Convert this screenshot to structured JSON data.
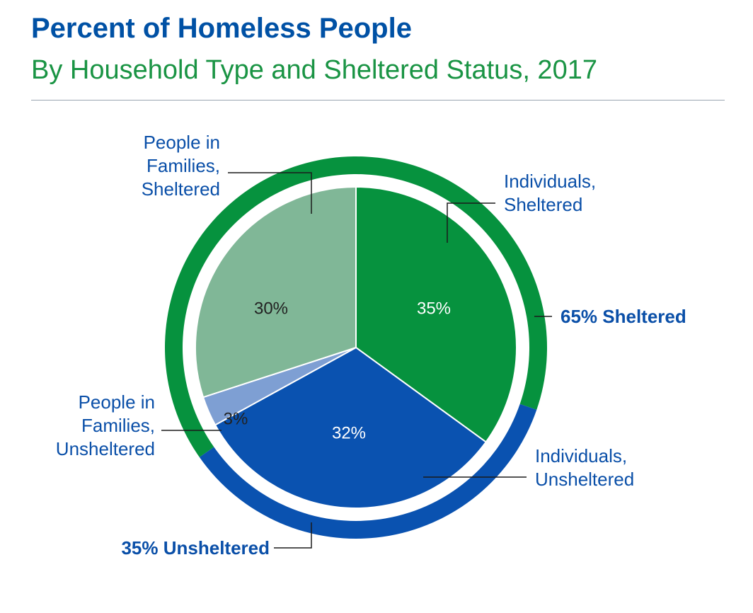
{
  "title": "Percent of Homeless People",
  "subtitle": "By Household Type and Sheltered Status, 2017",
  "colors": {
    "title": "#0051a5",
    "subtitle": "#1a9444",
    "sheltered_ring": "#06923e",
    "unsheltered_ring": "#0a52b0",
    "label_text": "#0a4fa8"
  },
  "chart_data": {
    "type": "pie",
    "title": "Percent of Homeless People",
    "subtitle": "By Household Type and Sheltered Status, 2017",
    "slices": [
      {
        "label": "Individuals, Sheltered",
        "label_lines": [
          "Individuals,",
          "Sheltered"
        ],
        "value": 35,
        "display": "35%",
        "color": "#06923e",
        "text_color": "#ffffff"
      },
      {
        "label": "Individuals, Unsheltered",
        "label_lines": [
          "Individuals,",
          "Unsheltered"
        ],
        "value": 32,
        "display": "32%",
        "color": "#0a52b0",
        "text_color": "#ffffff"
      },
      {
        "label": "People in Families, Unsheltered",
        "label_lines": [
          "People in",
          "Families,",
          "Unsheltered"
        ],
        "value": 3,
        "display": "3%",
        "color": "#7e9fd3",
        "text_color": "#222222"
      },
      {
        "label": "People in Families, Sheltered",
        "label_lines": [
          "People in",
          "Families,",
          "Sheltered"
        ],
        "value": 30,
        "display": "30%",
        "color": "#80b797",
        "text_color": "#222222"
      }
    ],
    "outer_ring": [
      {
        "label": "65% Sheltered",
        "value": 65,
        "color": "#06923e"
      },
      {
        "label": "35% Unsheltered",
        "value": 35,
        "color": "#0a52b0"
      }
    ]
  }
}
